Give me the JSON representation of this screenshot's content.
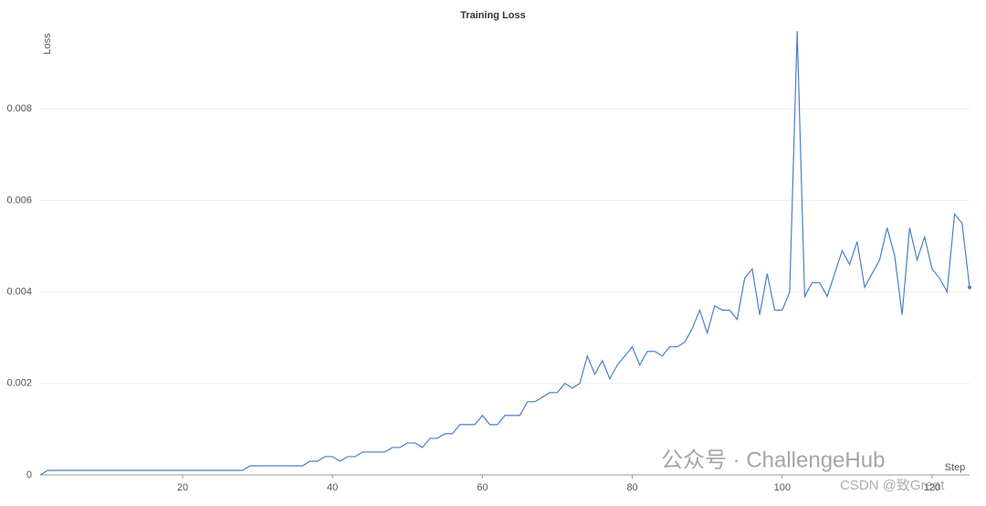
{
  "chart_data": {
    "type": "line",
    "title": "Training Loss",
    "x_label": "Step",
    "y_label": "Loss",
    "x": [
      1,
      2,
      3,
      4,
      5,
      6,
      7,
      8,
      9,
      10,
      11,
      12,
      13,
      14,
      15,
      16,
      17,
      18,
      19,
      20,
      21,
      22,
      23,
      24,
      25,
      26,
      27,
      28,
      29,
      30,
      31,
      32,
      33,
      34,
      35,
      36,
      37,
      38,
      39,
      40,
      41,
      42,
      43,
      44,
      45,
      46,
      47,
      48,
      49,
      50,
      51,
      52,
      53,
      54,
      55,
      56,
      57,
      58,
      59,
      60,
      61,
      62,
      63,
      64,
      65,
      66,
      67,
      68,
      69,
      70,
      71,
      72,
      73,
      74,
      75,
      76,
      77,
      78,
      79,
      80,
      81,
      82,
      83,
      84,
      85,
      86,
      87,
      88,
      89,
      90,
      91,
      92,
      93,
      94,
      95,
      96,
      97,
      98,
      99,
      100,
      101,
      102,
      103,
      104,
      105,
      106,
      107,
      108,
      109,
      110,
      111,
      112,
      113,
      114,
      115,
      116,
      117,
      118,
      119,
      120,
      121,
      122,
      123,
      124,
      125
    ],
    "series": [
      {
        "name": "Loss",
        "color": "#4a7fc8",
        "values": [
          0,
          0.0001,
          0.0001,
          0.0001,
          0.0001,
          0.0001,
          0.0001,
          0.0001,
          0.0001,
          0.0001,
          0.0001,
          0.0001,
          0.0001,
          0.0001,
          0.0001,
          0.0001,
          0.0001,
          0.0001,
          0.0001,
          0.0001,
          0.0001,
          0.0001,
          0.0001,
          0.0001,
          0.0001,
          0.0001,
          0.0001,
          0.0001,
          0.0002,
          0.0002,
          0.0002,
          0.0002,
          0.0002,
          0.0002,
          0.0002,
          0.0002,
          0.0003,
          0.0003,
          0.0004,
          0.0004,
          0.0003,
          0.0004,
          0.0004,
          0.0005,
          0.0005,
          0.0005,
          0.0005,
          0.0006,
          0.0006,
          0.0007,
          0.0007,
          0.0006,
          0.0008,
          0.0008,
          0.0009,
          0.0009,
          0.0011,
          0.0011,
          0.0011,
          0.0013,
          0.0011,
          0.0011,
          0.0013,
          0.0013,
          0.0013,
          0.0016,
          0.0016,
          0.0017,
          0.0018,
          0.0018,
          0.002,
          0.0019,
          0.002,
          0.0026,
          0.0022,
          0.0025,
          0.0021,
          0.0024,
          0.0026,
          0.0028,
          0.0024,
          0.0027,
          0.0027,
          0.0026,
          0.0028,
          0.0028,
          0.0029,
          0.0032,
          0.0036,
          0.0031,
          0.0037,
          0.0036,
          0.0036,
          0.0034,
          0.0043,
          0.0045,
          0.0035,
          0.0044,
          0.0036,
          0.0036,
          0.004,
          0.0097,
          0.0039,
          0.0042,
          0.0042,
          0.0039,
          0.0044,
          0.0049,
          0.0046,
          0.0051,
          0.0041,
          0.0044,
          0.0047,
          0.0054,
          0.0048,
          0.0035,
          0.0054,
          0.0047,
          0.0052,
          0.0045,
          0.0043,
          0.004,
          0.0057,
          0.0055,
          0.0041
        ]
      }
    ],
    "xlim": [
      1,
      125
    ],
    "xticks": [
      20,
      40,
      60,
      80,
      100,
      120
    ],
    "ylim": [
      0,
      0.00968
    ],
    "yticks": [
      0,
      0.002,
      0.004,
      0.006,
      0.008
    ],
    "grid": true
  },
  "watermark": {
    "line1": "公众号 · ChallengeHub",
    "line2": "CSDN @致Great"
  }
}
